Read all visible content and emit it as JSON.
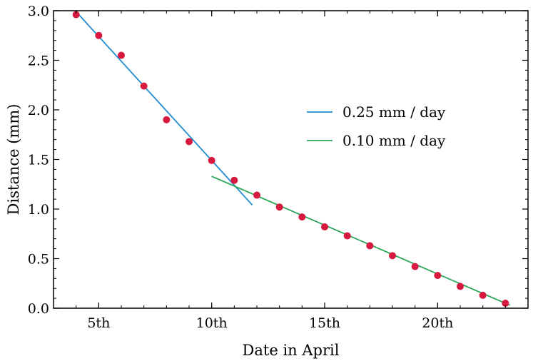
{
  "chart_data": {
    "type": "scatter",
    "xlabel": "Date in April",
    "ylabel": "Distance (mm)",
    "xlim": [
      3,
      24
    ],
    "ylim": [
      0.0,
      3.0
    ],
    "x_ticks": [
      {
        "value": 5,
        "label": "5th"
      },
      {
        "value": 10,
        "label": "10th"
      },
      {
        "value": 15,
        "label": "15th"
      },
      {
        "value": 20,
        "label": "20th"
      }
    ],
    "y_ticks": [
      {
        "value": 0.0,
        "label": "0.0"
      },
      {
        "value": 0.5,
        "label": "0.5"
      },
      {
        "value": 1.0,
        "label": "1.0"
      },
      {
        "value": 1.5,
        "label": "1.5"
      },
      {
        "value": 2.0,
        "label": "2.0"
      },
      {
        "value": 2.5,
        "label": "2.5"
      },
      {
        "value": 3.0,
        "label": "3.0"
      }
    ],
    "points": {
      "color": "#d7193f",
      "x": [
        4,
        5,
        6,
        7,
        8,
        9,
        10,
        11,
        12,
        13,
        14,
        15,
        16,
        17,
        18,
        19,
        20,
        21,
        22,
        23
      ],
      "y": [
        2.96,
        2.75,
        2.55,
        2.24,
        1.9,
        1.68,
        1.49,
        1.29,
        1.14,
        1.02,
        0.92,
        0.82,
        0.73,
        0.63,
        0.53,
        0.42,
        0.33,
        0.22,
        0.13,
        0.05
      ]
    },
    "fit_lines": [
      {
        "name": "0.25 mm / day",
        "color": "#1f8bd0",
        "x": [
          4,
          11.8
        ],
        "y": [
          2.99,
          1.04
        ]
      },
      {
        "name": "0.10 mm / day",
        "color": "#2aa75a",
        "x": [
          10,
          23.2
        ],
        "y": [
          1.33,
          0.03
        ]
      }
    ],
    "legend": {
      "position": "upper-right"
    },
    "grid": false
  }
}
